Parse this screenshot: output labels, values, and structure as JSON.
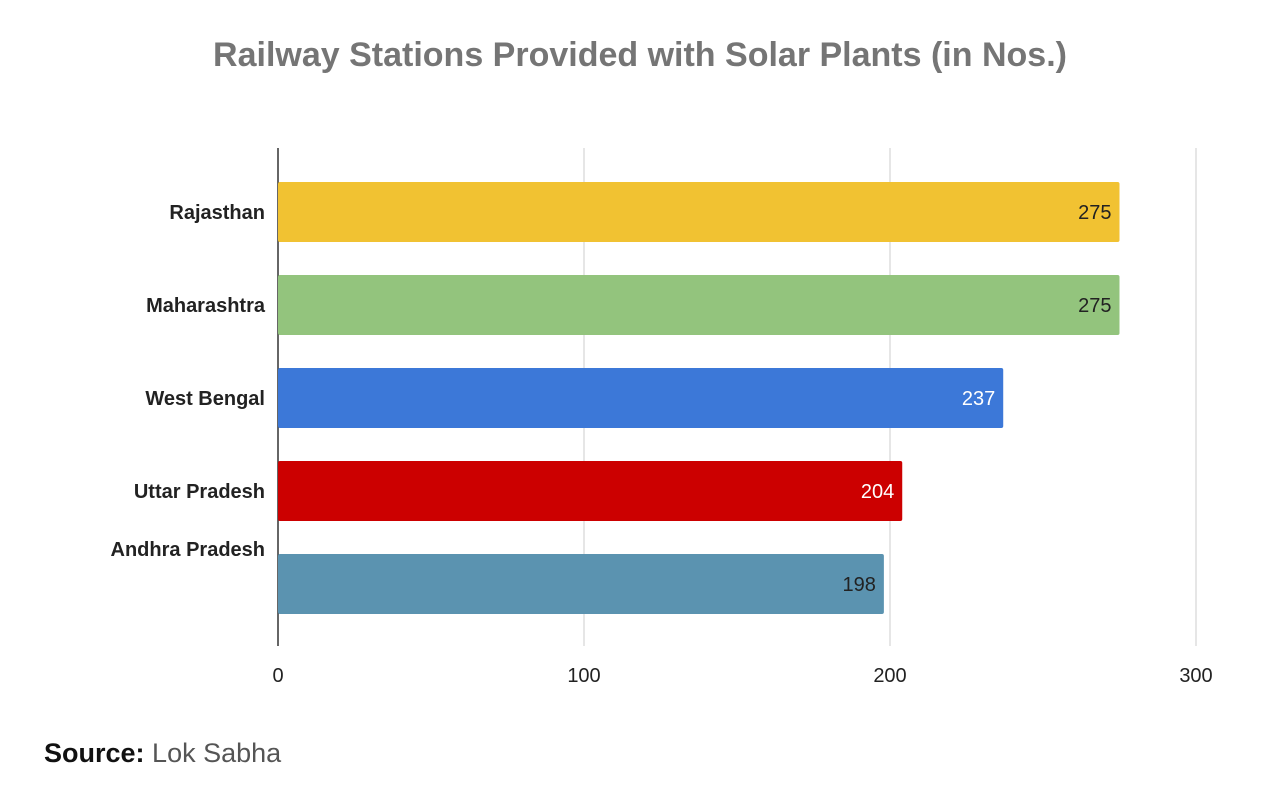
{
  "chart_data": {
    "type": "bar",
    "orientation": "horizontal",
    "title": "Railway Stations Provided with Solar Plants (in Nos.)",
    "categories": [
      "Rajasthan",
      "Maharashtra",
      "West Bengal",
      "Uttar Pradesh",
      "Andhra Pradesh"
    ],
    "values": [
      275,
      275,
      237,
      204,
      198
    ],
    "colors": [
      "#f1c232",
      "#93c47d",
      "#3c78d8",
      "#cc0000",
      "#5b93b0"
    ],
    "label_colors": [
      "#222222",
      "#222222",
      "#ffffff",
      "#ffffff",
      "#222222"
    ],
    "xlim": [
      0,
      300
    ],
    "xticks": [
      0,
      100,
      200,
      300
    ],
    "grid": true,
    "legend": "none"
  },
  "source": {
    "label": "Source:",
    "text": "Lok Sabha"
  }
}
